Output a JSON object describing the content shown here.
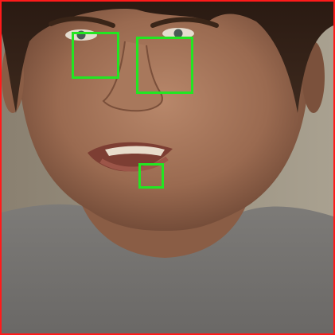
{
  "image": {
    "subject": "face-photograph",
    "frame_color": "#ff1a1a",
    "roi_color": "#22e622"
  },
  "regions": [
    {
      "name": "left-eye-region"
    },
    {
      "name": "right-eye-region"
    },
    {
      "name": "lower-lip-region"
    }
  ]
}
